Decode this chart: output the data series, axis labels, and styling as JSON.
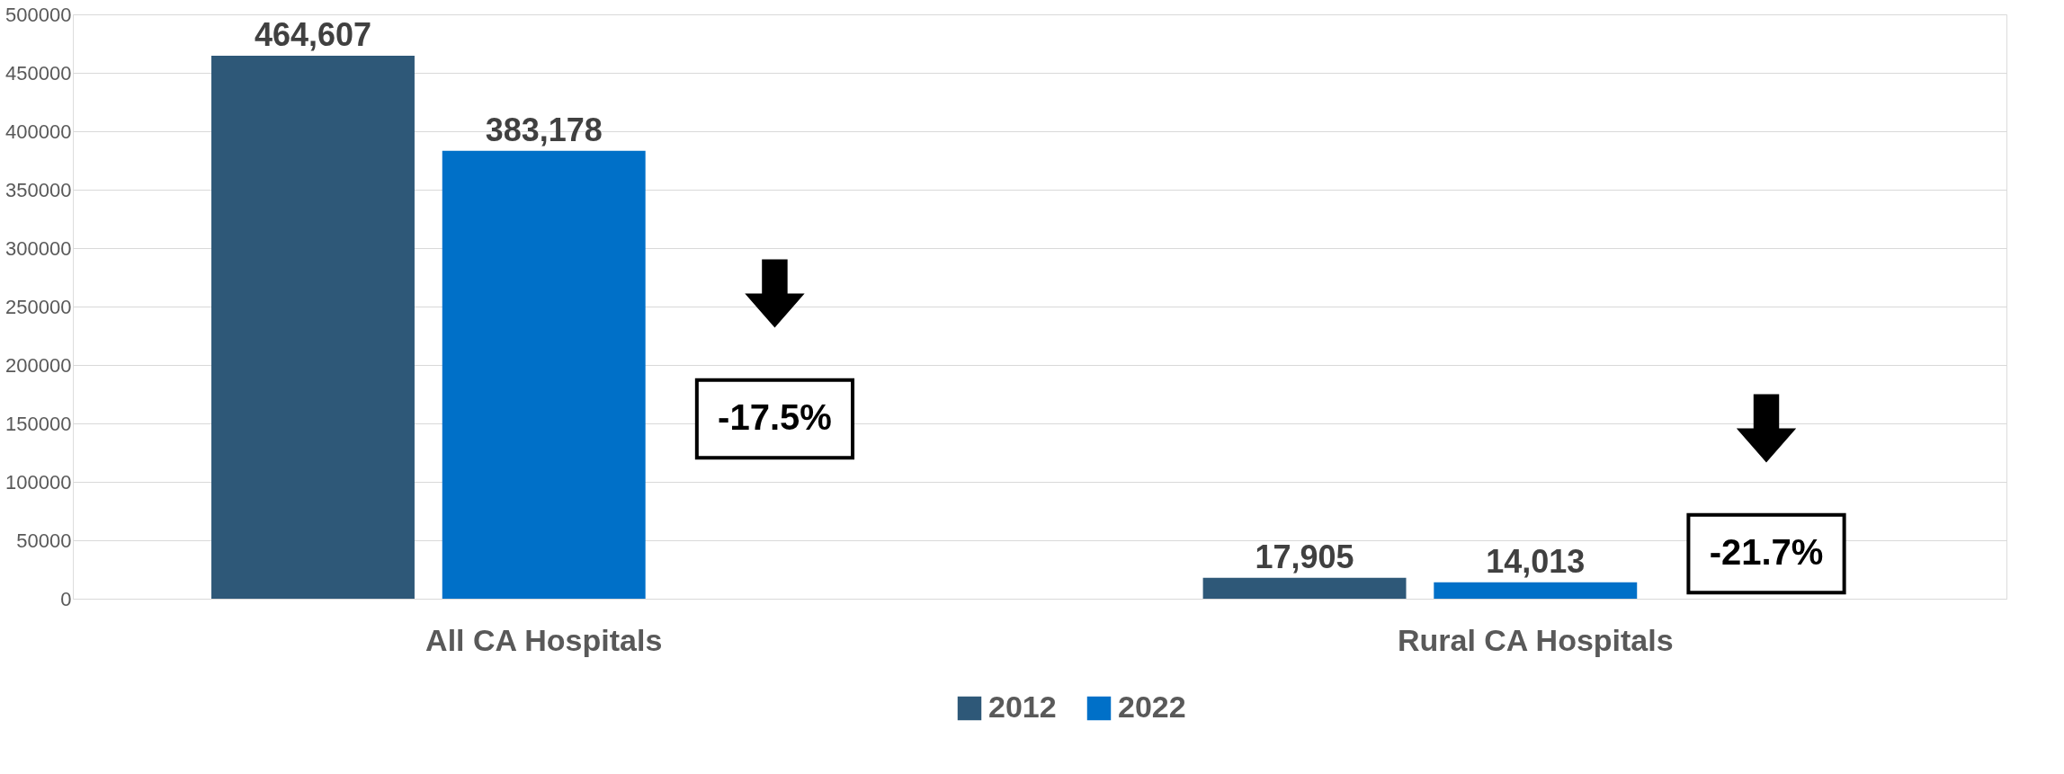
{
  "chart_data": {
    "type": "bar",
    "categories": [
      "All CA Hospitals",
      "Rural CA Hospitals"
    ],
    "series": [
      {
        "name": "2012",
        "color": "#2e5878",
        "values": [
          464607,
          17905
        ],
        "value_labels": [
          "464,607",
          "17,905"
        ]
      },
      {
        "name": "2022",
        "color": "#0070c8",
        "values": [
          383178,
          14013
        ],
        "value_labels": [
          "383,178",
          "14,013"
        ]
      }
    ],
    "ylim": [
      0,
      500000
    ],
    "yticks": [
      0,
      50000,
      100000,
      150000,
      200000,
      250000,
      300000,
      350000,
      400000,
      450000,
      500000
    ],
    "annotations": [
      "-17.5%",
      "-21.7%"
    ],
    "grid": "y",
    "legend": "bottom"
  }
}
